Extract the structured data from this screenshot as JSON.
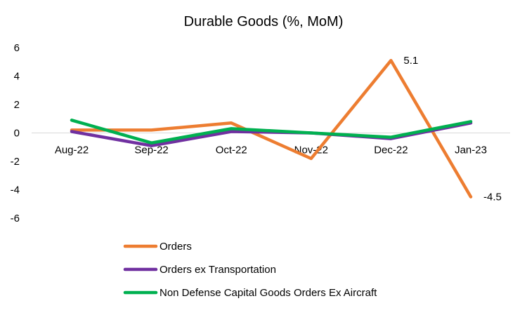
{
  "chart_data": {
    "type": "line",
    "title": "Durable Goods (%, MoM)",
    "xlabel": "",
    "ylabel": "",
    "categories": [
      "Aug-22",
      "Sep-22",
      "Oct-22",
      "Nov-22",
      "Dec-22",
      "Jan-23"
    ],
    "ylim": [
      -6,
      6
    ],
    "yticks": [
      "6",
      "4",
      "2",
      "0",
      "-2",
      "-4",
      "-6"
    ],
    "grid": false,
    "legend_position": "bottom-left",
    "series": [
      {
        "name": "Orders",
        "color": "#ED7D31",
        "values": [
          0.2,
          0.2,
          0.7,
          -1.8,
          5.1,
          -4.5
        ]
      },
      {
        "name": "Orders ex Transportation",
        "color": "#7030A0",
        "values": [
          0.1,
          -0.9,
          0.1,
          0.0,
          -0.4,
          0.7
        ]
      },
      {
        "name": "Non Defense Capital Goods Orders Ex Aircraft",
        "color": "#00B050",
        "values": [
          0.9,
          -0.7,
          0.3,
          0.0,
          -0.3,
          0.8
        ]
      }
    ],
    "data_labels": [
      {
        "series": 0,
        "index": 4,
        "text": "5.1"
      },
      {
        "series": 0,
        "index": 5,
        "text": "-4.5"
      }
    ]
  }
}
